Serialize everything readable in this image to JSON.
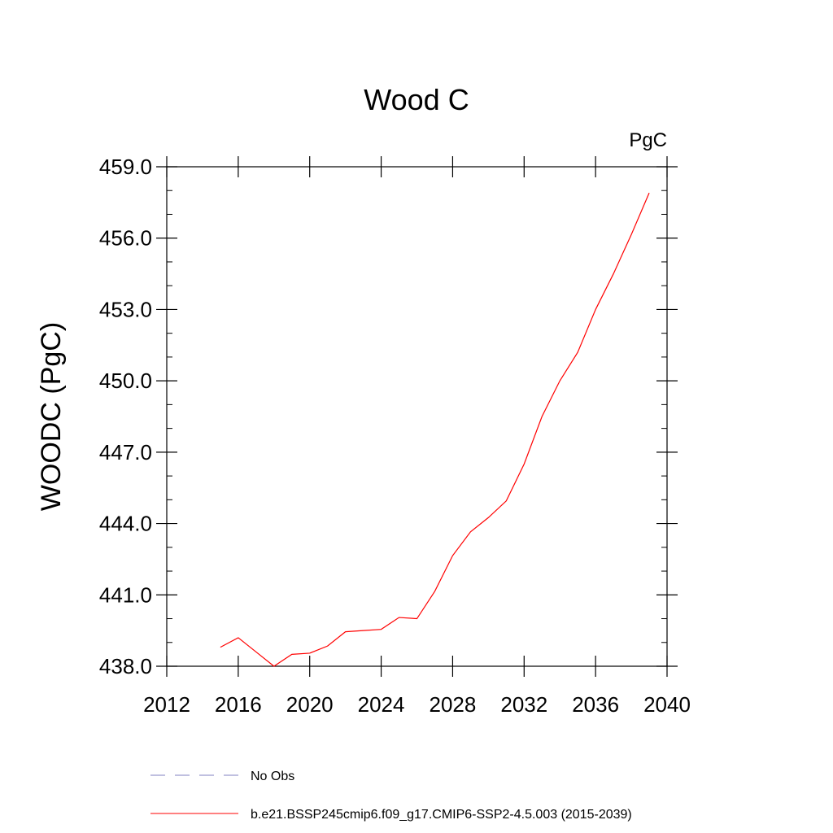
{
  "chart_data": {
    "type": "line",
    "title": "Wood C",
    "units_label": "PgC",
    "xlabel": "",
    "ylabel": "WOODC  (PgC)",
    "xlim": [
      2012,
      2040
    ],
    "ylim": [
      438.0,
      459.0
    ],
    "x_ticks": [
      2012,
      2016,
      2020,
      2024,
      2028,
      2032,
      2036,
      2040
    ],
    "x_tick_labels": [
      "2012",
      "2016",
      "2020",
      "2024",
      "2028",
      "2032",
      "2036",
      "2040"
    ],
    "y_ticks": [
      438.0,
      441.0,
      444.0,
      447.0,
      450.0,
      453.0,
      456.0,
      459.0
    ],
    "y_tick_labels": [
      "438.0",
      "441.0",
      "444.0",
      "447.0",
      "450.0",
      "453.0",
      "456.0",
      "459.0"
    ],
    "grid": false,
    "legend_position": "bottom",
    "series": [
      {
        "name": "b.e21.BSSP245cmip6.f09_g17.CMIP6-SSP2-4.5.003 (2015-2039)",
        "color": "#ff0000",
        "style": "solid",
        "x": [
          2015,
          2016,
          2017,
          2018,
          2019,
          2020,
          2021,
          2022,
          2023,
          2024,
          2025,
          2026,
          2027,
          2028,
          2029,
          2030,
          2031,
          2032,
          2033,
          2034,
          2035,
          2036,
          2037,
          2038,
          2039
        ],
        "y": [
          438.8,
          439.2,
          438.6,
          438.0,
          438.5,
          438.55,
          438.85,
          439.45,
          439.5,
          439.55,
          440.05,
          440.0,
          441.15,
          442.65,
          443.65,
          444.25,
          444.95,
          446.5,
          448.5,
          450.0,
          451.2,
          453.0,
          454.5,
          456.15,
          457.9
        ]
      }
    ],
    "legend": [
      {
        "label": "No Obs",
        "color": "#8080c0",
        "style": "dashed"
      },
      {
        "label": "b.e21.BSSP245cmip6.f09_g17.CMIP6-SSP2-4.5.003 (2015-2039)",
        "color": "#ff0000",
        "style": "solid"
      }
    ]
  }
}
